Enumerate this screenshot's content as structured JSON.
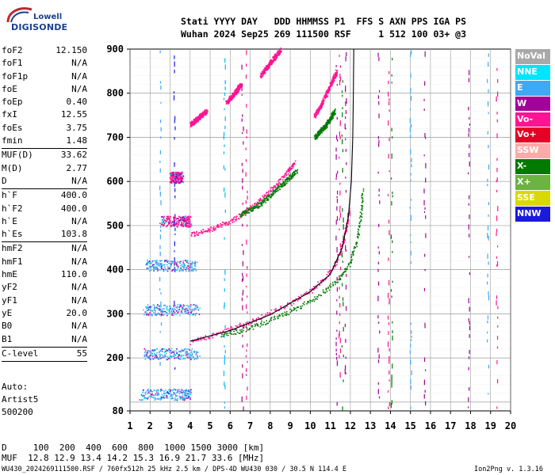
{
  "logo": {
    "line1": "Lowell",
    "line2": "DIGISONDE"
  },
  "header": {
    "line1": "Stati YYYY DAY   DDD HHMMSS P1  FFS S AXN PPS IGA PS",
    "line2": "Wuhan 2024 Sep25 269 111500 RSF     1 512 100 03+ @3"
  },
  "params": [
    {
      "name": "foF2",
      "value": "12.150"
    },
    {
      "name": "foF1",
      "value": "N/A"
    },
    {
      "name": "foF1p",
      "value": "N/A"
    },
    {
      "name": "foE",
      "value": "N/A"
    },
    {
      "name": "foEp",
      "value": "0.40"
    },
    {
      "name": "fxI",
      "value": "12.55"
    },
    {
      "name": "foEs",
      "value": "3.75"
    },
    {
      "name": "fmin",
      "value": "1.48"
    },
    {
      "sep": true
    },
    {
      "name": "MUF(D)",
      "value": "33.62"
    },
    {
      "name": "M(D)",
      "value": "2.77"
    },
    {
      "name": "D",
      "value": "N/A"
    },
    {
      "sep": true
    },
    {
      "name": "h`F",
      "value": "400.0"
    },
    {
      "name": "h`F2",
      "value": "400.0"
    },
    {
      "name": "h`E",
      "value": "N/A"
    },
    {
      "name": "h`Es",
      "value": "103.8"
    },
    {
      "sep": true
    },
    {
      "name": "hmF2",
      "value": "N/A"
    },
    {
      "name": "hmF1",
      "value": "N/A"
    },
    {
      "name": "hmE",
      "value": "110.0"
    },
    {
      "name": "yF2",
      "value": "N/A"
    },
    {
      "name": "yF1",
      "value": "N/A"
    },
    {
      "name": "yE",
      "value": "20.0"
    },
    {
      "name": "B0",
      "value": "N/A"
    },
    {
      "name": "B1",
      "value": "N/A"
    },
    {
      "sep": true
    },
    {
      "name": "C-level",
      "value": "55"
    },
    {
      "sep": true
    }
  ],
  "auto": {
    "line1": "Auto:",
    "line2": "Artist5",
    "line3": "500200"
  },
  "footer": {
    "d_line": "D     100  200  400  600  800  1000 1500 3000 [km]",
    "muf_line": "MUF  12.8 12.9 13.4 14.2 15.3 16.9 21.7 33.6 [MHz]",
    "file_line": "WU430_2024269111500.RSF / 760fx512h 25 kHz 2.5 km / DPS-4D WU430 030 / 30.5 N 114.4 E",
    "version": "Ion2Png v. 1.3.16"
  },
  "legend": [
    {
      "label": "NoVal",
      "color": "#a9a9a9"
    },
    {
      "label": "NNE",
      "color": "#00e5ff"
    },
    {
      "label": "E",
      "color": "#3fa9f5"
    },
    {
      "label": "W",
      "color": "#a4009a"
    },
    {
      "label": "Vo-",
      "color": "#ff1493"
    },
    {
      "label": "Vo+",
      "color": "#e60026"
    },
    {
      "label": "SSW",
      "color": "#ffaaaa"
    },
    {
      "label": "X-",
      "color": "#007a00"
    },
    {
      "label": "X+",
      "color": "#6cb33f"
    },
    {
      "label": "SSE",
      "color": "#d9d900"
    },
    {
      "label": "NNW",
      "color": "#1a1ad9"
    }
  ],
  "chart_data": {
    "type": "scatter",
    "title": "",
    "xlabel": "",
    "ylabel": "",
    "xlim": [
      1,
      20
    ],
    "ylim": [
      80,
      900
    ],
    "x_ticks": [
      1,
      2,
      3,
      4,
      5,
      6,
      7,
      8,
      9,
      10,
      11,
      12,
      13,
      14,
      15,
      16,
      17,
      18,
      19,
      20
    ],
    "y_ticks": [
      80,
      200,
      300,
      400,
      500,
      600,
      700,
      800,
      900
    ],
    "grid": true,
    "legend_position": "right",
    "series": [
      {
        "mode": "Vo-",
        "color": "#ff1493",
        "points": [
          [
            4.0,
            237
          ],
          [
            5.0,
            250
          ],
          [
            6.0,
            266
          ],
          [
            7.0,
            283
          ],
          [
            8.0,
            303
          ],
          [
            9.0,
            325
          ],
          [
            10.0,
            353
          ],
          [
            10.8,
            385
          ],
          [
            11.3,
            420
          ],
          [
            11.6,
            460
          ],
          [
            11.8,
            500
          ],
          [
            11.95,
            540
          ]
        ]
      },
      {
        "mode": "X-",
        "color": "#007a00",
        "points": [
          [
            5.5,
            250
          ],
          [
            6.5,
            262
          ],
          [
            7.5,
            278
          ],
          [
            8.5,
            296
          ],
          [
            9.5,
            318
          ],
          [
            10.5,
            345
          ],
          [
            11.3,
            375
          ],
          [
            11.9,
            410
          ],
          [
            12.3,
            460
          ],
          [
            12.5,
            520
          ],
          [
            12.6,
            580
          ]
        ]
      },
      {
        "mode": "Vo-",
        "color": "#ff1493",
        "points": [
          [
            4.0,
            480
          ],
          [
            5.0,
            492
          ],
          [
            6.0,
            510
          ],
          [
            7.0,
            540
          ],
          [
            8.0,
            580
          ],
          [
            8.8,
            620
          ],
          [
            9.2,
            645
          ]
        ]
      },
      {
        "mode": "X-",
        "color": "#007a00",
        "points": [
          [
            6.5,
            525
          ],
          [
            7.5,
            550
          ],
          [
            8.5,
            590
          ],
          [
            9.3,
            625
          ]
        ]
      },
      {
        "mode": "Vo-",
        "color": "#ff1493",
        "points": [
          [
            10.2,
            750
          ],
          [
            10.6,
            780
          ],
          [
            11.0,
            820
          ],
          [
            11.3,
            850
          ]
        ]
      },
      {
        "mode": "X-",
        "color": "#007a00",
        "points": [
          [
            10.2,
            700
          ],
          [
            10.8,
            730
          ],
          [
            11.2,
            760
          ]
        ]
      },
      {
        "mode": "Vo-",
        "color": "#ff1493",
        "points": [
          [
            7.5,
            840
          ],
          [
            8.0,
            870
          ],
          [
            8.5,
            900
          ]
        ]
      },
      {
        "mode": "Vo-",
        "color": "#ff1493",
        "points": [
          [
            5.8,
            780
          ],
          [
            6.2,
            800
          ],
          [
            6.5,
            820
          ]
        ]
      },
      {
        "mode": "Vo-",
        "color": "#ff1493",
        "points": [
          [
            4.0,
            730
          ],
          [
            4.4,
            745
          ],
          [
            4.8,
            760
          ]
        ]
      },
      {
        "mode": "E",
        "color": "#3fa9f5",
        "points": [
          [
            1.7,
            210
          ],
          [
            2.5,
            210
          ],
          [
            3.5,
            210
          ],
          [
            4.4,
            210
          ]
        ]
      },
      {
        "mode": "E",
        "color": "#3fa9f5",
        "points": [
          [
            1.7,
            310
          ],
          [
            2.5,
            310
          ],
          [
            3.5,
            310
          ],
          [
            4.4,
            310
          ]
        ]
      },
      {
        "mode": "E",
        "color": "#3fa9f5",
        "points": [
          [
            1.8,
            410
          ],
          [
            2.5,
            410
          ],
          [
            3.5,
            410
          ],
          [
            4.3,
            410
          ]
        ]
      },
      {
        "mode": "Vo-",
        "color": "#ff1493",
        "points": [
          [
            2.5,
            510
          ],
          [
            3.5,
            510
          ],
          [
            4.0,
            510
          ]
        ]
      },
      {
        "mode": "Vo-",
        "color": "#ff1493",
        "points": [
          [
            3.0,
            610
          ],
          [
            3.6,
            610
          ]
        ]
      },
      {
        "mode": "E",
        "color": "#3fa9f5",
        "points": [
          [
            1.5,
            118
          ],
          [
            2.5,
            118
          ],
          [
            3.5,
            118
          ],
          [
            4.0,
            118
          ]
        ]
      }
    ],
    "profile_curve": {
      "color": "#000000",
      "points": [
        [
          4.0,
          238
        ],
        [
          6.0,
          262
        ],
        [
          8.0,
          298
        ],
        [
          10.0,
          350
        ],
        [
          11.0,
          390
        ],
        [
          11.6,
          450
        ],
        [
          11.9,
          520
        ],
        [
          12.05,
          600
        ],
        [
          12.12,
          700
        ],
        [
          12.15,
          800
        ],
        [
          12.17,
          900
        ]
      ]
    }
  }
}
